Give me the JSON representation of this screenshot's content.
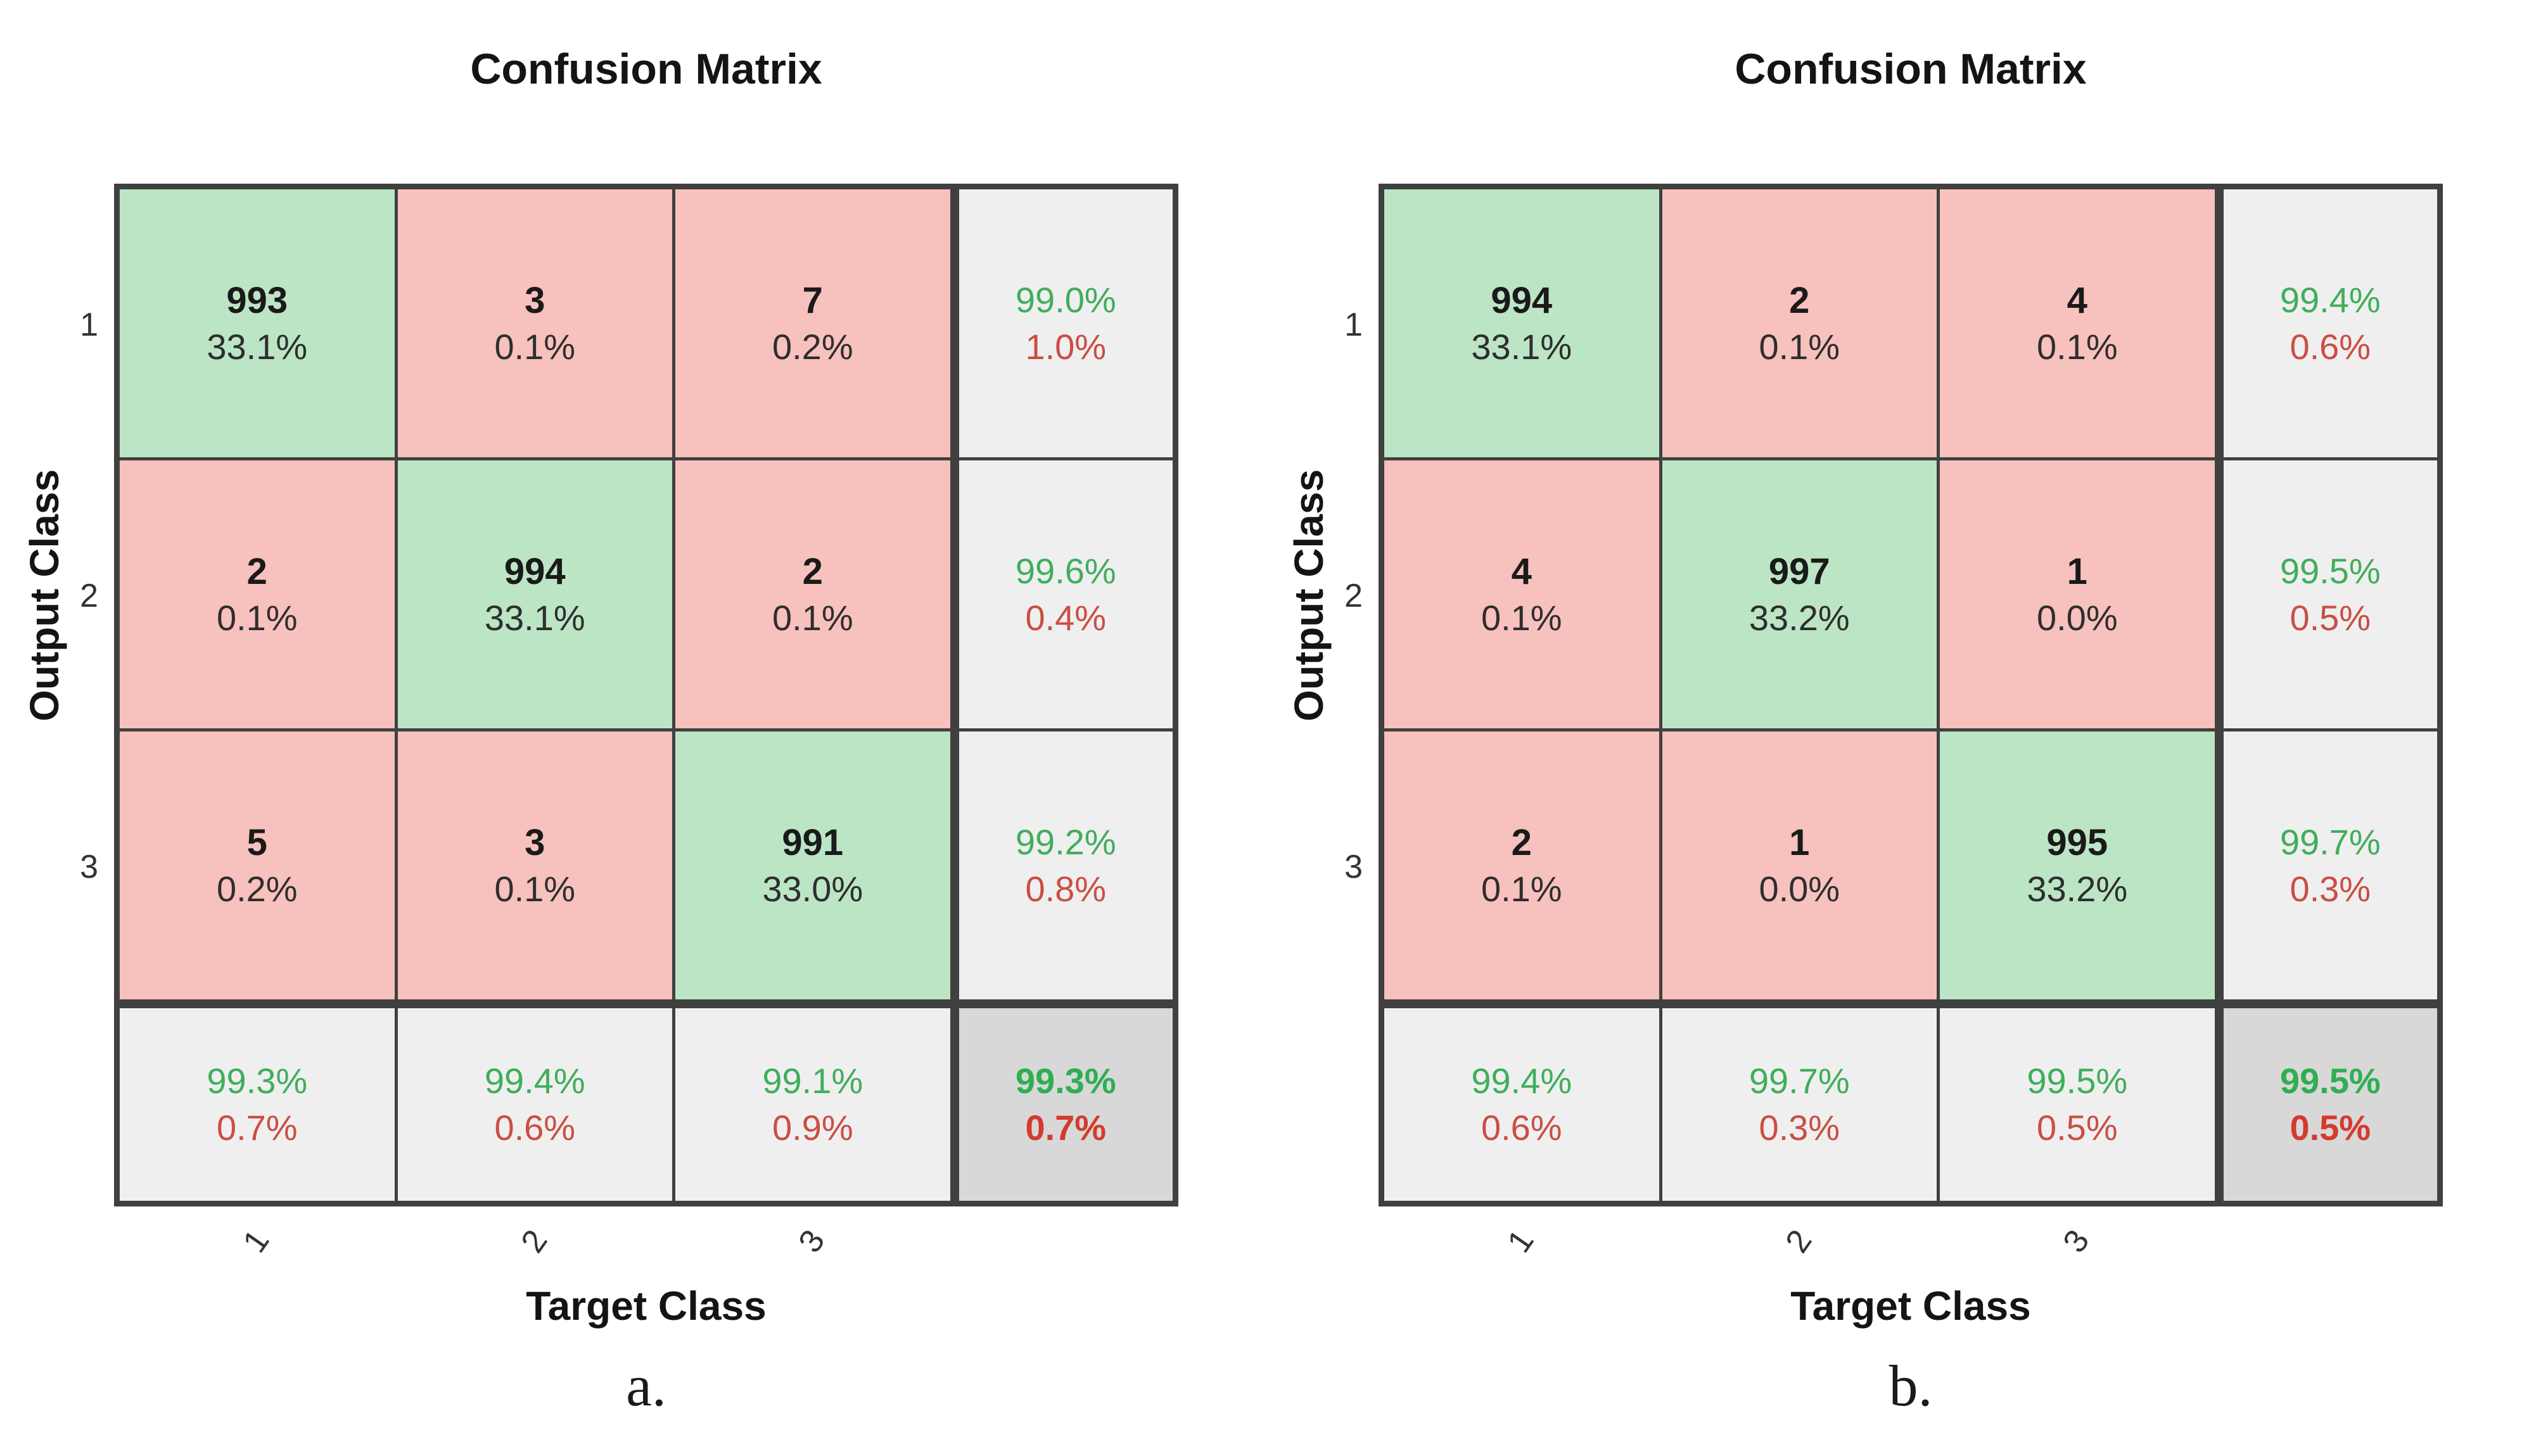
{
  "colors": {
    "diagonal_fill": "#bce5c5",
    "off_diagonal_fill": "#f7c1bd",
    "summary_fill": "#f0efef",
    "total_fill": "#d8d8d8",
    "green_text": "#3fae5c",
    "red_text": "#ca4e44",
    "grid_line": "#404040"
  },
  "chart_data": [
    {
      "type": "heatmap",
      "title": "Confusion Matrix",
      "xlabel": "Target Class",
      "ylabel": "Output Class",
      "caption": "a.",
      "classes": [
        "1",
        "2",
        "3"
      ],
      "counts": [
        [
          993,
          3,
          7
        ],
        [
          2,
          994,
          2
        ],
        [
          5,
          3,
          991
        ]
      ],
      "count_pcts": [
        [
          "33.1%",
          "0.1%",
          "0.2%"
        ],
        [
          "0.1%",
          "33.1%",
          "0.1%"
        ],
        [
          "0.2%",
          "0.1%",
          "33.0%"
        ]
      ],
      "row_summary_pcts": [
        [
          "99.0%",
          "1.0%"
        ],
        [
          "99.6%",
          "0.4%"
        ],
        [
          "99.2%",
          "0.8%"
        ]
      ],
      "col_summary_pcts": [
        [
          "99.3%",
          "0.7%"
        ],
        [
          "99.4%",
          "0.6%"
        ],
        [
          "99.1%",
          "0.9%"
        ]
      ],
      "overall_pcts": [
        "99.3%",
        "0.7%"
      ]
    },
    {
      "type": "heatmap",
      "title": "Confusion Matrix",
      "xlabel": "Target Class",
      "ylabel": "Output Class",
      "caption": "b.",
      "classes": [
        "1",
        "2",
        "3"
      ],
      "counts": [
        [
          994,
          2,
          4
        ],
        [
          4,
          997,
          1
        ],
        [
          2,
          1,
          995
        ]
      ],
      "count_pcts": [
        [
          "33.1%",
          "0.1%",
          "0.1%"
        ],
        [
          "0.1%",
          "33.2%",
          "0.0%"
        ],
        [
          "0.1%",
          "0.0%",
          "33.2%"
        ]
      ],
      "row_summary_pcts": [
        [
          "99.4%",
          "0.6%"
        ],
        [
          "99.5%",
          "0.5%"
        ],
        [
          "99.7%",
          "0.3%"
        ]
      ],
      "col_summary_pcts": [
        [
          "99.4%",
          "0.6%"
        ],
        [
          "99.7%",
          "0.3%"
        ],
        [
          "99.5%",
          "0.5%"
        ]
      ],
      "overall_pcts": [
        "99.5%",
        "0.5%"
      ]
    }
  ]
}
